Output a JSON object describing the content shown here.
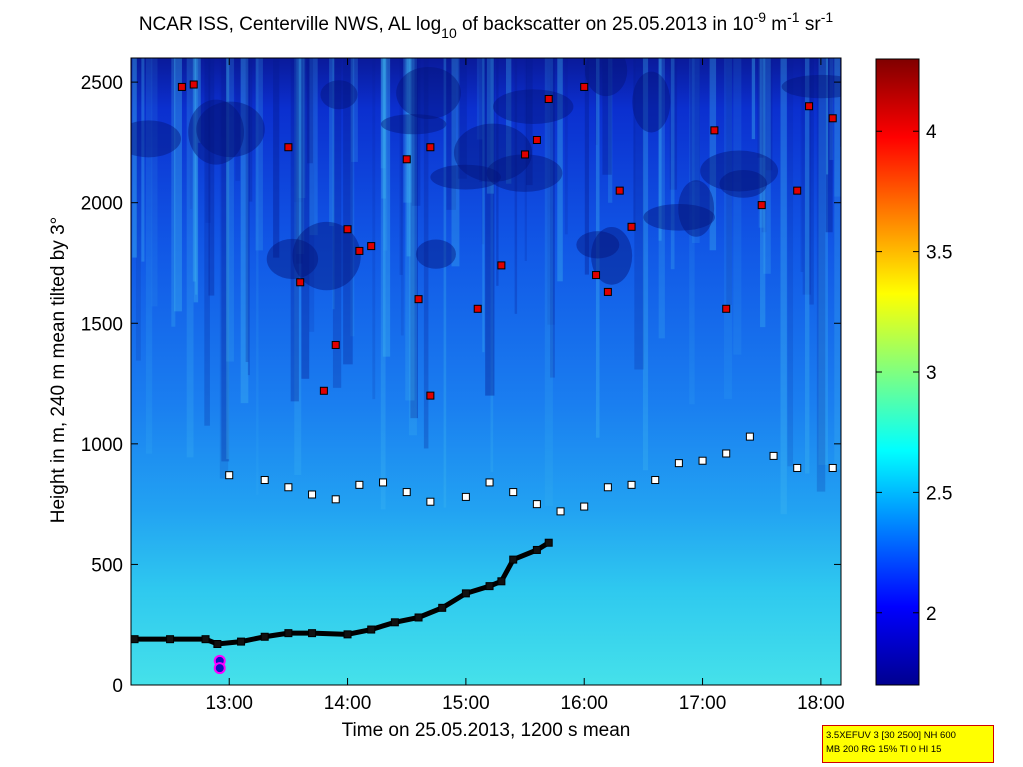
{
  "chart_data": {
    "type": "heatmap",
    "title": {
      "prefix": "NCAR ISS, Centerville NWS, AL log",
      "sub": "10",
      "middle": " of backscatter on 25.05.2013 in 10",
      "sup1": "-9",
      "unit1": " m",
      "sup2": "-1",
      "unit2": " sr",
      "sup3": "-1"
    },
    "xlabel": "Time on 25.05.2013, 1200 s mean",
    "ylabel": "Height in m, 240 m mean tilted by 3°",
    "x_ticks": [
      "13:00",
      "14:00",
      "15:00",
      "16:00",
      "17:00",
      "18:00"
    ],
    "x_tick_hours": [
      13,
      14,
      15,
      16,
      17,
      18
    ],
    "xlim_hours": [
      12.17,
      18.17
    ],
    "y_ticks": [
      "0",
      "500",
      "1000",
      "1500",
      "2000",
      "2500"
    ],
    "y_tick_values": [
      0,
      500,
      1000,
      1500,
      2000,
      2500
    ],
    "ylim": [
      0,
      2600
    ],
    "colorbar": {
      "range": [
        1.7,
        4.3
      ],
      "ticks": [
        "2",
        "2.5",
        "3",
        "3.5",
        "4"
      ],
      "tick_values": [
        2,
        2.5,
        3,
        3.5,
        4
      ],
      "colormap": "jet"
    },
    "mixing_layer_height": {
      "marker": "black-square",
      "points": [
        [
          12.2,
          190
        ],
        [
          12.5,
          190
        ],
        [
          12.8,
          190
        ],
        [
          12.9,
          170
        ],
        [
          13.1,
          180
        ],
        [
          13.3,
          200
        ],
        [
          13.5,
          215
        ],
        [
          13.7,
          215
        ],
        [
          14.0,
          210
        ],
        [
          14.2,
          230
        ],
        [
          14.4,
          260
        ],
        [
          14.6,
          280
        ],
        [
          14.8,
          320
        ],
        [
          15.0,
          380
        ],
        [
          15.2,
          410
        ],
        [
          15.3,
          430
        ],
        [
          15.4,
          520
        ],
        [
          15.6,
          560
        ],
        [
          15.7,
          590
        ]
      ]
    },
    "lower_layer": {
      "marker": "white-square",
      "points": [
        [
          13.0,
          870
        ],
        [
          13.3,
          850
        ],
        [
          13.5,
          820
        ],
        [
          13.7,
          790
        ],
        [
          13.9,
          770
        ],
        [
          14.1,
          830
        ],
        [
          14.3,
          840
        ],
        [
          14.5,
          800
        ],
        [
          14.7,
          760
        ],
        [
          15.0,
          780
        ],
        [
          15.2,
          840
        ],
        [
          15.4,
          800
        ],
        [
          15.6,
          750
        ],
        [
          15.8,
          720
        ],
        [
          16.0,
          740
        ],
        [
          16.2,
          820
        ],
        [
          16.4,
          830
        ],
        [
          16.6,
          850
        ],
        [
          16.8,
          920
        ],
        [
          17.0,
          930
        ],
        [
          17.2,
          960
        ],
        [
          17.4,
          1030
        ],
        [
          17.6,
          950
        ],
        [
          17.8,
          900
        ],
        [
          18.1,
          900
        ]
      ]
    },
    "aerosol_layer_heights": {
      "marker": "red-square",
      "points": [
        [
          12.6,
          2480
        ],
        [
          12.7,
          2490
        ],
        [
          13.5,
          2230
        ],
        [
          13.6,
          1670
        ],
        [
          13.8,
          1220
        ],
        [
          13.9,
          1410
        ],
        [
          14.0,
          1890
        ],
        [
          14.1,
          1800
        ],
        [
          14.2,
          1820
        ],
        [
          14.5,
          2180
        ],
        [
          14.6,
          1600
        ],
        [
          14.7,
          1200
        ],
        [
          14.7,
          2230
        ],
        [
          15.1,
          1560
        ],
        [
          15.3,
          1740
        ],
        [
          15.5,
          2200
        ],
        [
          15.6,
          2260
        ],
        [
          15.7,
          2430
        ],
        [
          16.0,
          2480
        ],
        [
          16.1,
          1700
        ],
        [
          16.2,
          1630
        ],
        [
          16.3,
          2050
        ],
        [
          16.4,
          1900
        ],
        [
          17.1,
          2300
        ],
        [
          17.2,
          1560
        ],
        [
          17.5,
          1990
        ],
        [
          17.8,
          2050
        ],
        [
          17.9,
          2400
        ],
        [
          18.1,
          2350
        ]
      ]
    },
    "fog_markers": {
      "marker": "magenta-circle",
      "points": [
        [
          12.92,
          100
        ],
        [
          12.92,
          70
        ]
      ]
    }
  },
  "info_box": {
    "line1": "3.5XEFUV 3 [30 2500] NH 600",
    "line2": "MB 200 RG 15% TI 0 HI 15"
  }
}
